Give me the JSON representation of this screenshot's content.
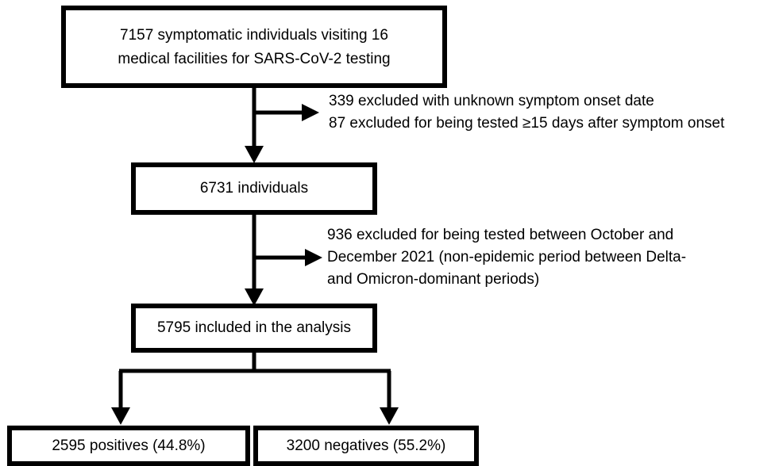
{
  "nodes": [
    {
      "lines": [
        "7157 symptomatic individuals visiting 16",
        "medical facilities for SARS-CoV-2 testing"
      ]
    },
    {
      "lines": [
        "6731 individuals"
      ]
    },
    {
      "lines": [
        "5795 included in the analysis"
      ]
    },
    {
      "lines": [
        "2595 positives (44.8%)"
      ]
    },
    {
      "lines": [
        "3200 negatives (55.2%)"
      ]
    }
  ],
  "exclusions": [
    {
      "lines": [
        "339 excluded with unknown symptom onset date",
        "87 excluded for being tested ≥15 days after symptom onset"
      ]
    },
    {
      "lines": [
        "936 excluded for being tested between October and",
        "December 2021 (non-epidemic period between Delta-",
        "and Omicron-dominant periods)"
      ]
    }
  ]
}
